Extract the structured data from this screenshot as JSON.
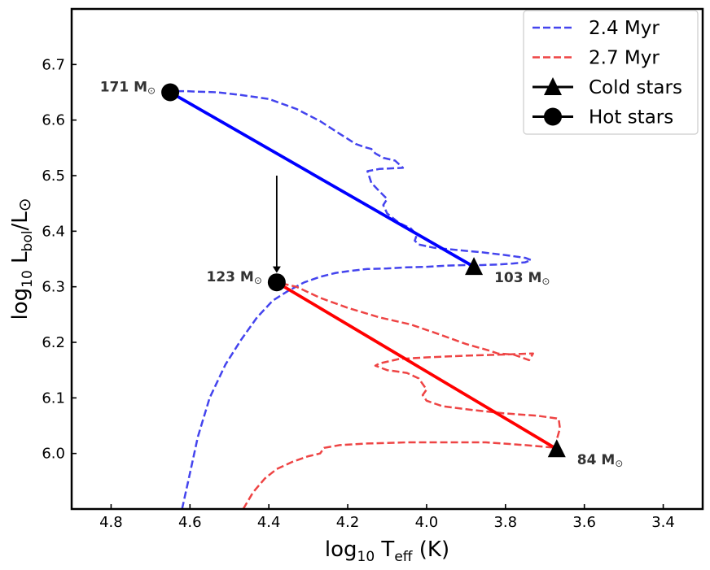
{
  "chart_data": {
    "type": "line",
    "title": "",
    "xlabel": {
      "base": "log",
      "sub1": "10",
      "mid": " T",
      "sub2": "eff",
      "tail": " (K)"
    },
    "ylabel": {
      "base": "log",
      "sub1": "10",
      "mid": " L",
      "sub2": "bol",
      "tail": "/L",
      "sym": "⊙"
    },
    "xlim": [
      4.9,
      3.3
    ],
    "ylim": [
      5.9,
      6.8
    ],
    "x_ticks": [
      4.8,
      4.6,
      4.4,
      4.2,
      4.0,
      3.8,
      3.6,
      3.4
    ],
    "x_tick_labels": [
      "4.8",
      "4.6",
      "4.4",
      "4.2",
      "4.0",
      "3.8",
      "3.6",
      "3.4"
    ],
    "y_ticks": [
      6.0,
      6.1,
      6.2,
      6.3,
      6.4,
      6.5,
      6.6,
      6.7
    ],
    "y_tick_labels": [
      "6.0",
      "6.1",
      "6.2",
      "6.3",
      "6.4",
      "6.5",
      "6.6",
      "6.7"
    ],
    "legend_position": "top-right",
    "colors": {
      "blue_track": "#4444ee",
      "red_track": "#ee4444",
      "blue_line": "#0000ff",
      "red_line": "#ff0000",
      "marker": "#000000"
    },
    "series": [
      {
        "name": "2.4 Myr",
        "style": "dashed",
        "color": "#4444ee",
        "x": [
          4.62,
          4.603,
          4.58,
          4.55,
          4.51,
          4.47,
          4.43,
          4.39,
          4.35,
          4.31,
          4.27,
          4.23,
          4.19,
          4.15,
          4.1,
          4.05,
          4.0,
          3.95,
          3.9,
          3.86,
          3.82,
          3.78,
          3.75,
          3.735,
          3.75,
          3.8,
          3.86,
          3.92,
          3.98,
          4.02,
          4.03,
          4.025,
          4.04,
          4.07,
          4.1,
          4.11,
          4.1,
          4.12,
          4.14,
          4.15,
          4.12,
          4.06,
          4.08,
          4.11,
          4.13,
          4.14,
          4.16,
          4.18,
          4.22,
          4.27,
          4.33,
          4.4,
          4.47,
          4.53,
          4.58,
          4.61,
          4.64,
          4.65
        ],
        "y": [
          5.9,
          5.955,
          6.03,
          6.1,
          6.16,
          6.205,
          6.245,
          6.275,
          6.293,
          6.308,
          6.318,
          6.325,
          6.329,
          6.332,
          6.333,
          6.335,
          6.336,
          6.338,
          6.339,
          6.339,
          6.34,
          6.342,
          6.344,
          6.348,
          6.352,
          6.357,
          6.362,
          6.366,
          6.37,
          6.376,
          6.383,
          6.393,
          6.405,
          6.415,
          6.432,
          6.447,
          6.458,
          6.472,
          6.487,
          6.508,
          6.512,
          6.514,
          6.527,
          6.532,
          6.54,
          6.548,
          6.552,
          6.557,
          6.575,
          6.598,
          6.62,
          6.638,
          6.645,
          6.65,
          6.651,
          6.652,
          6.652,
          6.65
        ]
      },
      {
        "name": "2.7 Myr",
        "style": "dashed",
        "color": "#ee4444",
        "x": [
          4.465,
          4.44,
          4.41,
          4.38,
          4.34,
          4.3,
          4.27,
          4.26,
          4.22,
          4.15,
          4.05,
          3.95,
          3.85,
          3.75,
          3.7,
          3.67,
          3.67,
          3.662,
          3.665,
          3.67,
          3.72,
          3.8,
          3.88,
          3.96,
          4.0,
          4.01,
          4.0,
          4.02,
          4.05,
          4.1,
          4.13,
          4.12,
          4.07,
          4.0,
          3.9,
          3.8,
          3.73,
          3.74,
          3.78,
          3.82,
          3.84,
          3.9,
          3.97,
          4.04,
          4.12,
          4.2,
          4.27,
          4.33,
          4.38
        ],
        "y": [
          5.9,
          5.93,
          5.955,
          5.972,
          5.985,
          5.995,
          6.0,
          6.01,
          6.015,
          6.018,
          6.02,
          6.02,
          6.02,
          6.015,
          6.012,
          6.01,
          6.025,
          6.045,
          6.062,
          6.063,
          6.068,
          6.072,
          6.078,
          6.085,
          6.095,
          6.105,
          6.115,
          6.135,
          6.145,
          6.15,
          6.158,
          6.162,
          6.17,
          6.173,
          6.176,
          6.178,
          6.18,
          6.168,
          6.178,
          6.18,
          6.185,
          6.197,
          6.215,
          6.232,
          6.245,
          6.262,
          6.28,
          6.3,
          6.308
        ]
      }
    ],
    "lines": [
      {
        "name": "2.4 Myr connector",
        "color": "#0000ff",
        "x": [
          4.65,
          3.88
        ],
        "y": [
          6.65,
          6.336
        ]
      },
      {
        "name": "2.7 Myr connector",
        "color": "#ff0000",
        "x": [
          4.38,
          3.67
        ],
        "y": [
          6.308,
          6.008
        ]
      }
    ],
    "points": [
      {
        "name": "Hot stars",
        "marker": "circle",
        "x": 4.65,
        "y": 6.65,
        "label": "171 M",
        "label_sym": "⊙"
      },
      {
        "name": "Cold stars",
        "marker": "triangle",
        "x": 3.88,
        "y": 6.336,
        "label": "103 M",
        "label_sym": "⊙"
      },
      {
        "name": "Hot stars",
        "marker": "circle",
        "x": 4.38,
        "y": 6.308,
        "label": "123 M",
        "label_sym": "⊙"
      },
      {
        "name": "Cold stars",
        "marker": "triangle",
        "x": 3.67,
        "y": 6.008,
        "label": "84 M",
        "label_sym": "⊙"
      }
    ],
    "arrow": {
      "x": 4.38,
      "y_from": 6.5,
      "y_to": 6.325
    },
    "legend": [
      {
        "label": "2.4 Myr",
        "style": "dashed",
        "color": "#4444ee"
      },
      {
        "label": "2.7 Myr",
        "style": "dashed",
        "color": "#ee4444"
      },
      {
        "label": "Cold stars",
        "style": "triangle",
        "color": "#000000"
      },
      {
        "label": "Hot stars",
        "style": "circle",
        "color": "#000000"
      }
    ]
  }
}
